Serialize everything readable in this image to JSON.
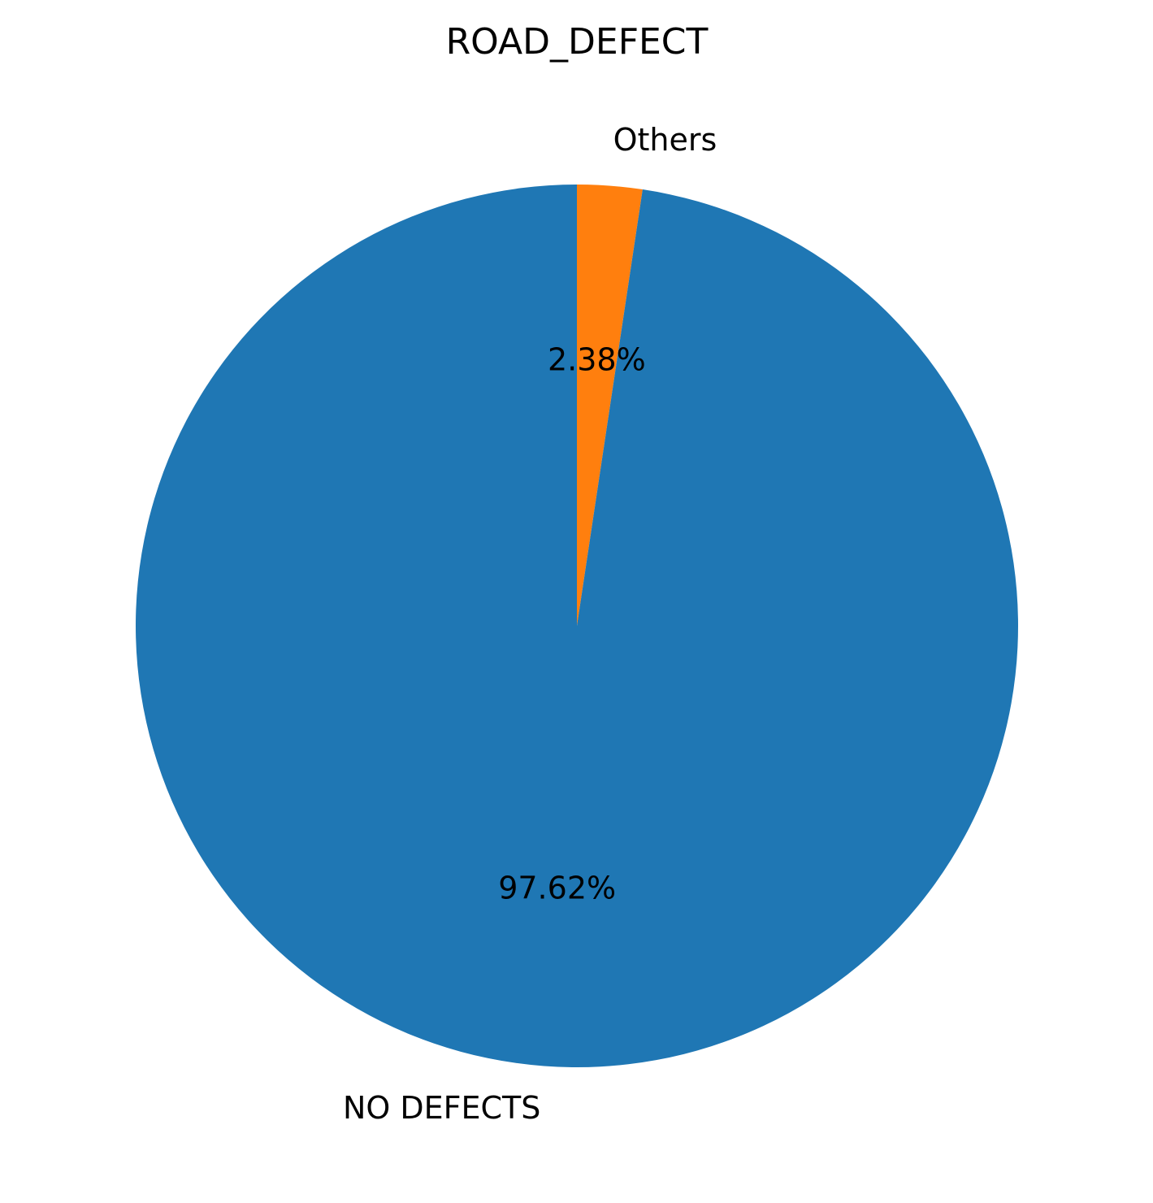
{
  "chart_data": {
    "type": "pie",
    "title": "ROAD_DEFECT",
    "slices": [
      {
        "label": "Others",
        "value": 2.38,
        "pct_label": "2.38%",
        "color": "#ff7f0e"
      },
      {
        "label": "NO DEFECTS",
        "value": 97.62,
        "pct_label": "97.62%",
        "color": "#1f77b4"
      }
    ],
    "start_angle": "top",
    "direction": "clockwise",
    "legend": "none"
  }
}
